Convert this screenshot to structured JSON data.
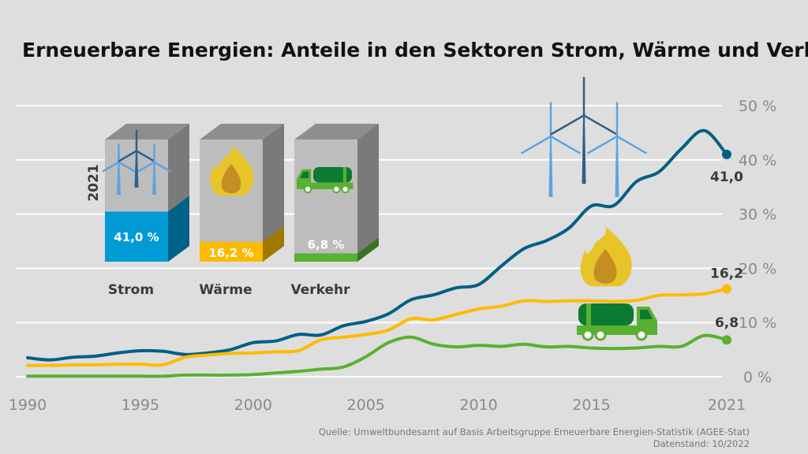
{
  "chart_data": {
    "type": "line",
    "title": "Erneuerbare Energien: Anteile in den Sektoren Strom, Wärme und Verkehr",
    "x": [
      1990,
      1991,
      1992,
      1993,
      1994,
      1995,
      1996,
      1997,
      1998,
      1999,
      2000,
      2001,
      2002,
      2003,
      2004,
      2005,
      2006,
      2007,
      2008,
      2009,
      2010,
      2011,
      2012,
      2013,
      2014,
      2015,
      2016,
      2017,
      2018,
      2019,
      2020,
      2021
    ],
    "xlim": [
      1990,
      2021
    ],
    "ylim": [
      0,
      50
    ],
    "x_ticks": [
      "1990",
      "1995",
      "2000",
      "2005",
      "2010",
      "2015",
      "2021"
    ],
    "x_tick_values": [
      1990,
      1995,
      2000,
      2005,
      2010,
      2015,
      2021
    ],
    "y_ticks": [
      "0 %",
      "10 %",
      "20 %",
      "30 %",
      "40 %",
      "50 %"
    ],
    "y_tick_values": [
      0,
      10,
      20,
      30,
      40,
      50
    ],
    "grid": "horizontal",
    "series": [
      {
        "name": "Strom",
        "color": "#005f85",
        "end_label": "41,0",
        "icon": "wind-turbines-icon",
        "values": [
          3.5,
          3.1,
          3.6,
          3.8,
          4.4,
          4.8,
          4.7,
          4.1,
          4.4,
          5.0,
          6.3,
          6.6,
          7.8,
          7.7,
          9.4,
          10.2,
          11.6,
          14.2,
          15.1,
          16.4,
          17.0,
          20.4,
          23.6,
          25.1,
          27.4,
          31.5,
          31.6,
          36.0,
          37.8,
          42.1,
          45.4,
          41.0
        ]
      },
      {
        "name": "Wärme",
        "color": "#fdbb00",
        "end_label": "16,2",
        "icon": "flame-icon",
        "values": [
          2.1,
          2.1,
          2.2,
          2.2,
          2.3,
          2.3,
          2.2,
          3.6,
          4.0,
          4.3,
          4.4,
          4.6,
          4.8,
          6.8,
          7.3,
          7.8,
          8.6,
          10.7,
          10.5,
          11.5,
          12.5,
          13.0,
          14.0,
          13.9,
          14.0,
          14.0,
          13.9,
          14.1,
          15.0,
          15.1,
          15.3,
          16.2
        ]
      },
      {
        "name": "Verkehr",
        "color": "#5ab031",
        "end_label": "6,8",
        "icon": "tanker-truck-icon",
        "values": [
          0.1,
          0.1,
          0.1,
          0.1,
          0.1,
          0.1,
          0.1,
          0.3,
          0.3,
          0.3,
          0.4,
          0.7,
          1.0,
          1.4,
          1.8,
          3.7,
          6.3,
          7.3,
          6.0,
          5.5,
          5.8,
          5.6,
          6.0,
          5.5,
          5.6,
          5.3,
          5.2,
          5.3,
          5.6,
          5.6,
          7.6,
          6.8
        ]
      }
    ],
    "inset": {
      "year_label": "2021",
      "boxes": [
        {
          "name": "Strom",
          "value": 41.0,
          "label": "41,0 %",
          "front": "#009ad5",
          "side": "#006286",
          "icon": "wind-turbines-icon"
        },
        {
          "name": "Wärme",
          "value": 16.2,
          "label": "16,2 %",
          "front": "#fdbb00",
          "side": "#a07800",
          "icon": "flame-icon"
        },
        {
          "name": "Verkehr",
          "value": 6.8,
          "label": "6,8 %",
          "front": "#5ab031",
          "side": "#3a7420",
          "icon": "tanker-truck-icon"
        }
      ]
    }
  },
  "source": "Quelle: Umweltbundesamt auf Basis Arbeitsgruppe Erneuerbare Energien-Statistik (AGEE-Stat)",
  "data_status": "Datenstand: 10/2022"
}
